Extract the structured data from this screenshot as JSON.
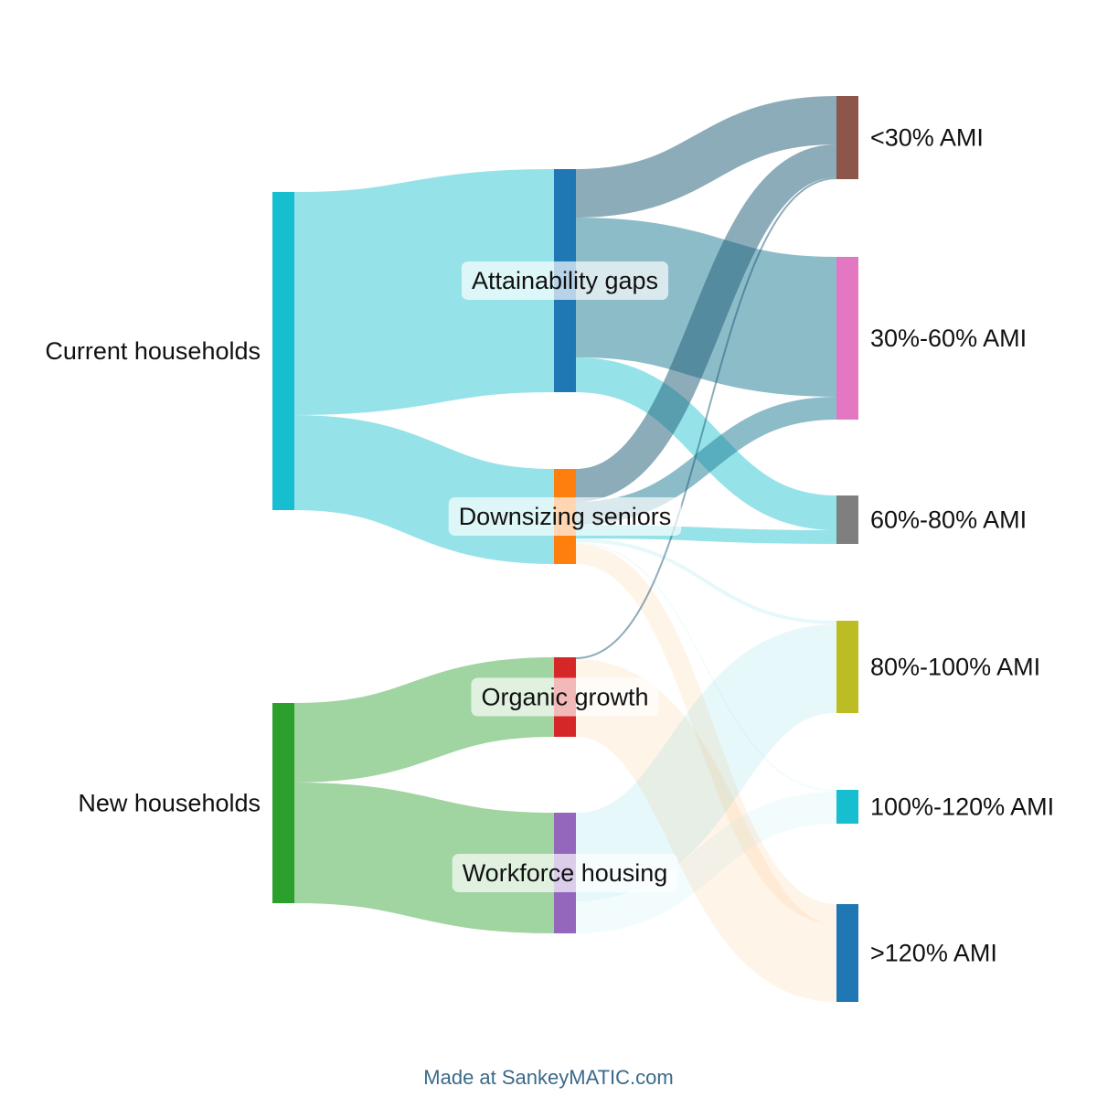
{
  "chart_data": {
    "type": "sankey",
    "nodes": [
      {
        "id": "current",
        "label": "Current households",
        "color": "#17becf",
        "column": 0
      },
      {
        "id": "new",
        "label": "New households",
        "color": "#2ca02c",
        "column": 0
      },
      {
        "id": "attain",
        "label": "Attainability gaps",
        "color": "#1f77b4",
        "column": 1
      },
      {
        "id": "downsizing",
        "label": "Downsizing seniors",
        "color": "#ff7f0e",
        "column": 1
      },
      {
        "id": "organic",
        "label": "Organic growth",
        "color": "#d62728",
        "column": 1
      },
      {
        "id": "workforce",
        "label": "Workforce housing",
        "color": "#9467bd",
        "column": 1
      },
      {
        "id": "lt30",
        "label": "<30% AMI",
        "color": "#8c564b",
        "column": 2
      },
      {
        "id": "a30_60",
        "label": "30%-60% AMI",
        "color": "#e377c2",
        "column": 2
      },
      {
        "id": "a60_80",
        "label": "60%-80% AMI",
        "color": "#7f7f7f",
        "column": 2
      },
      {
        "id": "a80_100",
        "label": "80%-100% AMI",
        "color": "#bcbd22",
        "column": 2
      },
      {
        "id": "a100_120",
        "label": "100%-120% AMI",
        "color": "#17becf",
        "column": 2
      },
      {
        "id": "gt120",
        "label": ">120% AMI",
        "color": "#1f77b4",
        "column": 2
      }
    ],
    "flows": [
      {
        "from": "current",
        "to": "attain",
        "value": 244,
        "color": "#17becf",
        "opacity": 0.45
      },
      {
        "from": "current",
        "to": "downsizing",
        "value": 104,
        "color": "#17becf",
        "opacity": 0.45
      },
      {
        "from": "new",
        "to": "organic",
        "value": 87,
        "color": "#2ca02c",
        "opacity": 0.45
      },
      {
        "from": "new",
        "to": "workforce",
        "value": 132,
        "color": "#2ca02c",
        "opacity": 0.45
      },
      {
        "from": "attain",
        "to": "lt30",
        "value": 53,
        "color": "#1b5a73",
        "opacity": 0.5
      },
      {
        "from": "attain",
        "to": "a30_60",
        "value": 153,
        "color": "#1b7a94",
        "opacity": 0.5
      },
      {
        "from": "attain",
        "to": "a60_80",
        "value": 38,
        "color": "#17becf",
        "opacity": 0.45
      },
      {
        "from": "downsizing",
        "to": "lt30",
        "value": 36,
        "color": "#1b5a73",
        "opacity": 0.5
      },
      {
        "from": "downsizing",
        "to": "a30_60",
        "value": 25,
        "color": "#1b7a94",
        "opacity": 0.5
      },
      {
        "from": "downsizing",
        "to": "a60_80",
        "value": 15,
        "color": "#17becf",
        "opacity": 0.45
      },
      {
        "from": "downsizing",
        "to": "a80_100",
        "value": 4,
        "color": "#17becf",
        "opacity": 0.1
      },
      {
        "from": "downsizing",
        "to": "a100_120",
        "value": 2,
        "color": "#17becf",
        "opacity": 0.05
      },
      {
        "from": "downsizing",
        "to": "gt120",
        "value": 22,
        "color": "#ffc78e",
        "opacity": 0.2
      },
      {
        "from": "organic",
        "to": "lt30",
        "value": 2,
        "color": "#1b5a73",
        "opacity": 0.5
      },
      {
        "from": "organic",
        "to": "gt120",
        "value": 85,
        "color": "#ffc78e",
        "opacity": 0.2
      },
      {
        "from": "workforce",
        "to": "a80_100",
        "value": 97,
        "color": "#17becf",
        "opacity": 0.1
      },
      {
        "from": "workforce",
        "to": "a100_120",
        "value": 35,
        "color": "#17becf",
        "opacity": 0.05
      }
    ]
  },
  "credit": "Made at SankeyMATIC.com"
}
